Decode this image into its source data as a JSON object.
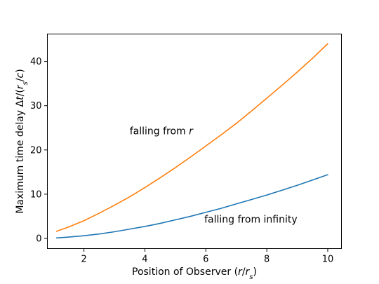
{
  "chart_data": {
    "type": "line",
    "xlabel_parts": [
      "Position of Observer (",
      "r",
      "/",
      "r",
      "s",
      ")"
    ],
    "ylabel_parts": [
      "Maximum time delay Δ",
      "t",
      "/(",
      "r",
      "s",
      "/",
      "c",
      ")"
    ],
    "xlim": [
      0.8,
      10.45
    ],
    "ylim": [
      -2.3,
      46.2
    ],
    "x_ticks": [
      2,
      4,
      6,
      8,
      10
    ],
    "y_ticks": [
      0,
      10,
      20,
      30,
      40
    ],
    "grid": false,
    "series": [
      {
        "color": "#ff7f0e",
        "x": [
          1.1,
          1.5,
          2,
          2.5,
          3,
          3.5,
          4,
          4.5,
          5,
          5.5,
          6,
          6.5,
          7,
          7.5,
          8,
          8.5,
          9,
          9.5,
          10
        ],
        "y": [
          1.6,
          2.6,
          4.0,
          5.7,
          7.5,
          9.4,
          11.5,
          13.7,
          16.0,
          18.4,
          20.9,
          23.4,
          26.0,
          28.8,
          31.7,
          34.6,
          37.6,
          40.7,
          44.0
        ]
      },
      {
        "color": "#1f77b4",
        "x": [
          1.1,
          1.5,
          2,
          2.5,
          3,
          3.5,
          4,
          4.5,
          5,
          5.5,
          6,
          6.5,
          7,
          7.5,
          8,
          8.5,
          9,
          9.5,
          10
        ],
        "y": [
          0.1,
          0.3,
          0.6,
          1.0,
          1.5,
          2.1,
          2.7,
          3.4,
          4.2,
          5.0,
          5.9,
          6.8,
          7.8,
          8.8,
          9.8,
          10.9,
          12.0,
          13.2,
          14.4
        ]
      }
    ],
    "annotations": [
      {
        "parts": [
          "falling from ",
          "r"
        ],
        "x": 3.5,
        "y": 23.5,
        "italic_parts": [
          1
        ]
      },
      {
        "parts": [
          "falling from infinity"
        ],
        "x": 5.95,
        "y": 3.6,
        "italic_parts": []
      }
    ]
  }
}
